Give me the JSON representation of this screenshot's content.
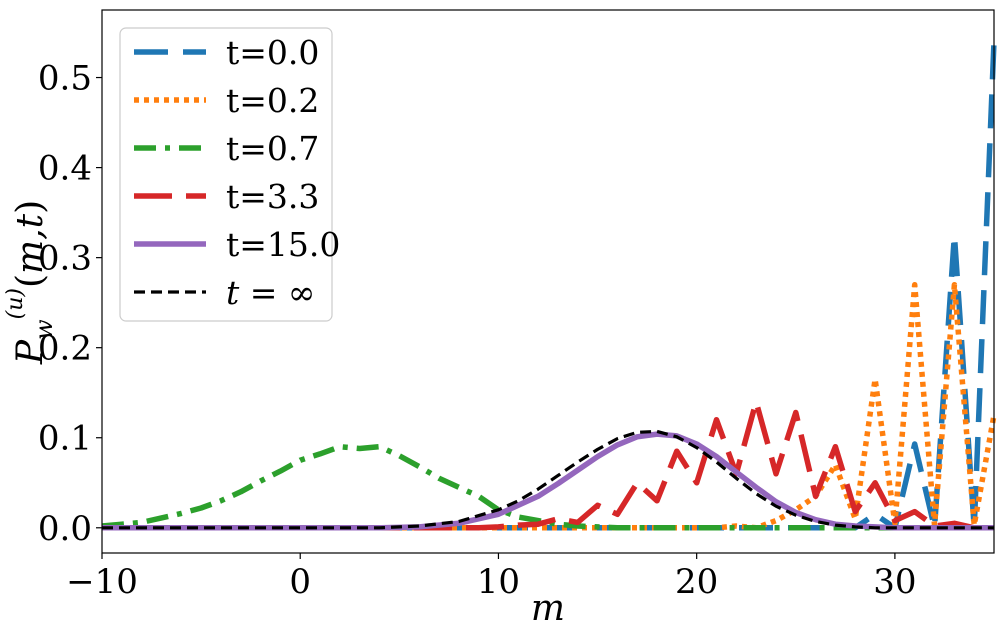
{
  "chart_data": {
    "type": "line",
    "xlabel": "m",
    "ylabel": "P_w^(u)(m,t)",
    "xlim": [
      -10,
      35
    ],
    "ylim": [
      -0.028,
      0.575
    ],
    "xticks": [
      -10,
      0,
      10,
      20,
      30
    ],
    "xtick_labels": [
      "−10",
      "0",
      "10",
      "20",
      "30"
    ],
    "yticks": [
      0.0,
      0.1,
      0.2,
      0.3,
      0.4,
      0.5
    ],
    "ytick_labels": [
      "0.0",
      "0.1",
      "0.2",
      "0.3",
      "0.4",
      "0.5"
    ],
    "grid": false,
    "legend": "top-left",
    "series": [
      {
        "name": "t=0.0",
        "color": "#1f77b4",
        "style": "dashed",
        "x": [
          -10,
          20,
          27,
          28,
          29,
          30,
          31,
          32,
          33,
          34,
          35
        ],
        "y": [
          0,
          0,
          0,
          0,
          0.015,
          0.0,
          0.093,
          0.0,
          0.325,
          0.0,
          0.54
        ]
      },
      {
        "name": "t=0.2",
        "color": "#ff7f0e",
        "style": "dotted",
        "x": [
          -10,
          20,
          21,
          22,
          23,
          24,
          25,
          26,
          27,
          28,
          29,
          30,
          31,
          32,
          33,
          34,
          35
        ],
        "y": [
          0,
          0,
          0.0,
          0.002,
          0.0,
          0.008,
          0.02,
          0.035,
          0.07,
          0.01,
          0.165,
          0.005,
          0.27,
          0.003,
          0.27,
          0.003,
          0.125
        ]
      },
      {
        "name": "t=0.7",
        "color": "#2ca02c",
        "style": "dashdot",
        "x": [
          -10,
          -9,
          -8,
          -7,
          -6,
          -5,
          -4,
          -3,
          -2,
          -1,
          0,
          1,
          2,
          3,
          4,
          5,
          6,
          7,
          8,
          9,
          10,
          11,
          12,
          13,
          14,
          15,
          16,
          35
        ],
        "y": [
          0.002,
          0.004,
          0.006,
          0.011,
          0.016,
          0.022,
          0.03,
          0.04,
          0.052,
          0.063,
          0.075,
          0.082,
          0.09,
          0.088,
          0.09,
          0.08,
          0.068,
          0.055,
          0.045,
          0.035,
          0.02,
          0.012,
          0.008,
          0.004,
          0.002,
          0.001,
          0.0,
          0.0
        ]
      },
      {
        "name": "t=3.3",
        "color": "#d62728",
        "style": "longdash",
        "x": [
          -10,
          9,
          10,
          11,
          12,
          13,
          14,
          15,
          16,
          17,
          18,
          19,
          20,
          21,
          22,
          23,
          24,
          25,
          26,
          27,
          28,
          29,
          30,
          31,
          32,
          33,
          34,
          35
        ],
        "y": [
          0,
          0,
          0.001,
          0.003,
          0.004,
          0.01,
          0.006,
          0.025,
          0.015,
          0.05,
          0.03,
          0.085,
          0.05,
          0.12,
          0.06,
          0.14,
          0.06,
          0.128,
          0.035,
          0.09,
          0.018,
          0.05,
          0.008,
          0.018,
          0.002,
          0.005,
          0.0,
          0.0
        ]
      },
      {
        "name": "t=15.0",
        "color": "#9467bd",
        "style": "solid",
        "x": [
          -10,
          0,
          4,
          6,
          8,
          10,
          12,
          13,
          14,
          15,
          16,
          17,
          18,
          19,
          20,
          21,
          22,
          23,
          24,
          25,
          26,
          27,
          28,
          29,
          30,
          32,
          35
        ],
        "y": [
          0,
          0,
          0.0,
          0.001,
          0.005,
          0.015,
          0.035,
          0.049,
          0.064,
          0.079,
          0.092,
          0.101,
          0.104,
          0.102,
          0.093,
          0.079,
          0.062,
          0.045,
          0.029,
          0.017,
          0.009,
          0.004,
          0.002,
          0.001,
          0.0,
          0.0,
          0.0
        ]
      },
      {
        "name": "t = ∞",
        "color": "#000000",
        "style": "shortdash",
        "x": [
          -10,
          0,
          4,
          6,
          8,
          10,
          11,
          12,
          13,
          14,
          15,
          16,
          17,
          18,
          19,
          20,
          21,
          22,
          23,
          24,
          25,
          26,
          27,
          28,
          29,
          30,
          35
        ],
        "y": [
          0,
          0,
          0.0,
          0.002,
          0.007,
          0.02,
          0.03,
          0.043,
          0.058,
          0.073,
          0.087,
          0.099,
          0.106,
          0.107,
          0.101,
          0.089,
          0.073,
          0.055,
          0.038,
          0.024,
          0.014,
          0.007,
          0.003,
          0.001,
          0.0,
          0.0,
          0.0
        ]
      }
    ]
  }
}
